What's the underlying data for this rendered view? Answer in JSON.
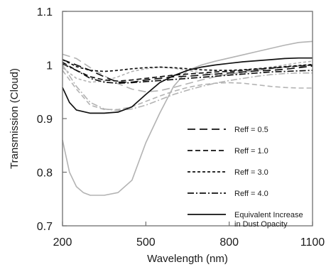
{
  "chart_data": {
    "type": "line",
    "title": "",
    "xlabel": "Wavelength (nm)",
    "ylabel": "Transmission (Cloud)",
    "xlim": [
      200,
      1100
    ],
    "ylim": [
      0.7,
      1.1
    ],
    "xticks": [
      "200",
      "500",
      "800",
      "1100"
    ],
    "yticks": [
      "0.7",
      "0.8",
      "0.9",
      "1",
      "1.1"
    ],
    "grid": false,
    "legend_position": "lower-right",
    "legend": [
      {
        "label": "Reff = 0.5",
        "style": "long-dash"
      },
      {
        "label": "Reff = 1.0",
        "style": "dash"
      },
      {
        "label": "Reff = 3.0",
        "style": "short-dash"
      },
      {
        "label": "Reff = 4.0",
        "style": "dash-dot"
      },
      {
        "label": "Equivalent Increase in Dust Opacity",
        "label_lines": [
          "Equivalent Increase",
          "in Dust Opacity"
        ],
        "style": "solid"
      }
    ],
    "series": [
      {
        "style": "long-dash",
        "color": "#111111",
        "x": [
          200,
          250,
          300,
          350,
          400,
          450,
          500,
          550,
          600,
          650,
          700,
          750,
          800,
          850,
          900,
          950,
          1000,
          1050,
          1100
        ],
        "y": [
          1.01,
          1.0,
          0.99,
          0.978,
          0.968,
          0.968,
          0.972,
          0.975,
          0.978,
          0.979,
          0.981,
          0.983,
          0.985,
          0.987,
          0.989,
          0.99,
          0.992,
          0.995,
          0.998
        ]
      },
      {
        "style": "dash",
        "color": "#111111",
        "x": [
          200,
          250,
          300,
          350,
          400,
          450,
          500,
          550,
          600,
          650,
          700,
          750,
          800,
          850,
          900,
          950,
          1000,
          1050,
          1100
        ],
        "y": [
          1.005,
          0.99,
          0.978,
          0.972,
          0.97,
          0.972,
          0.975,
          0.978,
          0.981,
          0.983,
          0.985,
          0.987,
          0.988,
          0.99,
          0.992,
          0.994,
          0.996,
          0.998,
          1.0
        ]
      },
      {
        "style": "short-dash",
        "color": "#111111",
        "x": [
          200,
          250,
          300,
          350,
          400,
          450,
          500,
          550,
          600,
          650,
          700,
          750,
          800,
          850,
          900,
          950,
          1000,
          1050,
          1100
        ],
        "y": [
          1.01,
          0.997,
          0.99,
          0.988,
          0.99,
          0.993,
          0.995,
          0.996,
          0.995,
          0.993,
          0.991,
          0.99,
          0.99,
          0.991,
          0.993,
          0.995,
          0.997,
          0.999,
          1.001
        ]
      },
      {
        "style": "dash-dot",
        "color": "#111111",
        "x": [
          200,
          250,
          300,
          350,
          400,
          450,
          500,
          550,
          600,
          650,
          700,
          750,
          800,
          850,
          900,
          950,
          1000,
          1050,
          1100
        ],
        "y": [
          1.002,
          0.99,
          0.975,
          0.968,
          0.966,
          0.967,
          0.969,
          0.971,
          0.973,
          0.975,
          0.977,
          0.979,
          0.981,
          0.983,
          0.985,
          0.987,
          0.988,
          0.989,
          0.99
        ]
      },
      {
        "style": "solid",
        "color": "#111111",
        "x": [
          200,
          225,
          250,
          300,
          350,
          400,
          450,
          500,
          550,
          600,
          650,
          700,
          750,
          800,
          850,
          900,
          950,
          1000,
          1050,
          1100
        ],
        "y": [
          0.958,
          0.93,
          0.916,
          0.91,
          0.91,
          0.912,
          0.922,
          0.945,
          0.967,
          0.98,
          0.99,
          0.996,
          1.0,
          1.003,
          1.006,
          1.008,
          1.01,
          1.012,
          1.013,
          1.013
        ]
      },
      {
        "style": "long-dash",
        "color": "#b3b3b3",
        "x": [
          200,
          250,
          300,
          350,
          400,
          450,
          500,
          550,
          600,
          650,
          700,
          750,
          800,
          850,
          900,
          950,
          1000,
          1050,
          1100
        ],
        "y": [
          1.02,
          1.012,
          0.995,
          0.98,
          0.965,
          0.955,
          0.95,
          0.952,
          0.958,
          0.965,
          0.972,
          0.978,
          0.983,
          0.987,
          0.99,
          0.993,
          0.996,
          0.998,
          1.0
        ]
      },
      {
        "style": "dash",
        "color": "#b3b3b3",
        "x": [
          200,
          250,
          300,
          350,
          400,
          450,
          500,
          550,
          600,
          650,
          700,
          750,
          800,
          850,
          900,
          950,
          1000,
          1050,
          1100
        ],
        "y": [
          0.99,
          0.955,
          0.925,
          0.917,
          0.917,
          0.922,
          0.932,
          0.942,
          0.951,
          0.958,
          0.963,
          0.966,
          0.967,
          0.966,
          0.963,
          0.96,
          0.958,
          0.957,
          0.957
        ]
      },
      {
        "style": "short-dash",
        "color": "#b3b3b3",
        "x": [
          200,
          250,
          300,
          350,
          400,
          450,
          500,
          550,
          600,
          650,
          700,
          750,
          800,
          850,
          900,
          950,
          1000,
          1050,
          1100
        ],
        "y": [
          0.995,
          0.975,
          0.968,
          0.97,
          0.978,
          0.988,
          0.993,
          0.996,
          0.994,
          0.99,
          0.985,
          0.982,
          0.982,
          0.985,
          0.99,
          0.996,
          1.0,
          1.004,
          1.007
        ]
      },
      {
        "style": "dash-dot",
        "color": "#b3b3b3",
        "x": [
          200,
          250,
          300,
          350,
          400,
          450,
          500,
          550,
          600,
          650,
          700,
          750,
          800,
          850,
          900,
          950,
          1000,
          1050,
          1100
        ],
        "y": [
          1.0,
          0.96,
          0.93,
          0.918,
          0.915,
          0.918,
          0.925,
          0.935,
          0.945,
          0.953,
          0.96,
          0.966,
          0.971,
          0.975,
          0.979,
          0.982,
          0.984,
          0.985,
          0.985
        ]
      },
      {
        "style": "solid",
        "color": "#b3b3b3",
        "x": [
          200,
          225,
          250,
          275,
          300,
          350,
          400,
          450,
          500,
          550,
          600,
          650,
          700,
          750,
          800,
          850,
          900,
          950,
          1000,
          1050,
          1100
        ],
        "y": [
          0.86,
          0.8,
          0.773,
          0.762,
          0.757,
          0.757,
          0.762,
          0.785,
          0.855,
          0.91,
          0.96,
          0.99,
          1.0,
          1.007,
          1.013,
          1.019,
          1.025,
          1.031,
          1.037,
          1.042,
          1.044
        ]
      }
    ]
  }
}
